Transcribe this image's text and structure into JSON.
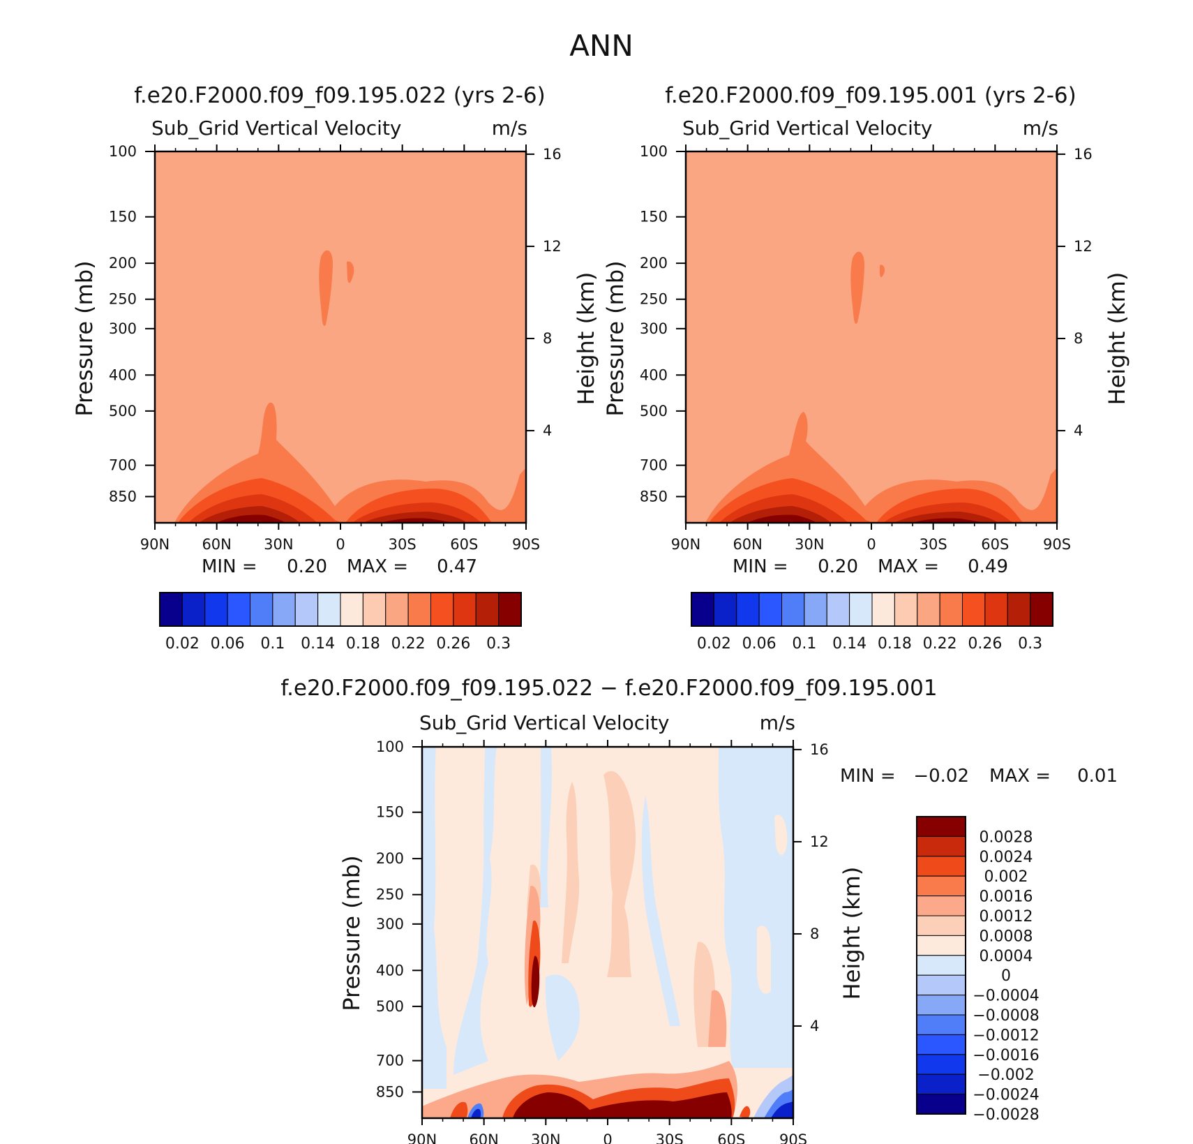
{
  "page": {
    "title": "ANN"
  },
  "colors": {
    "levels14": [
      "#08008c",
      "#0a20c8",
      "#1238ee",
      "#2a57ff",
      "#4f7ef8",
      "#86a8f6",
      "#b4c9fa",
      "#d8e8fb",
      "#fde9dc",
      "#fccbb2",
      "#fba683",
      "#f97a4a",
      "#f5501f",
      "#de3610",
      "#b41f08",
      "#860000"
    ],
    "diff": [
      "#08008c",
      "#0a20c8",
      "#1238ee",
      "#2a57ff",
      "#4f7ef8",
      "#86a8f6",
      "#b4c9fa",
      "#d8e8fb",
      "#fdeadd",
      "#fccfb8",
      "#fba98a",
      "#f97a4a",
      "#ef4b1a",
      "#c82a0b",
      "#860000"
    ]
  },
  "chart_data": [
    {
      "type": "heatmap",
      "case": "f.e20.F2000.f09_f09.195.022 (yrs 2-6)",
      "variable": "Sub_Grid Vertical Velocity",
      "units": "m/s",
      "ylabel": "Pressure (mb)",
      "y2label": "Height (km)",
      "x_ticks": [
        "90N",
        "60N",
        "30N",
        "0",
        "30S",
        "60S",
        "90S"
      ],
      "y_ticks": [
        100,
        150,
        200,
        250,
        300,
        400,
        500,
        700,
        850
      ],
      "y2_ticks": [
        4,
        8,
        12,
        16
      ],
      "ylim": [
        100,
        1000
      ],
      "min_label": "MIN =",
      "min": "0.20",
      "max_label": "MAX =",
      "max": "0.47",
      "colorbar_ticks": [
        "0.02",
        "0.06",
        "0.1",
        "0.14",
        "0.18",
        "0.22",
        "0.26",
        "0.3"
      ]
    },
    {
      "type": "heatmap",
      "case": "f.e20.F2000.f09_f09.195.001 (yrs 2-6)",
      "variable": "Sub_Grid Vertical Velocity",
      "units": "m/s",
      "ylabel": "Pressure (mb)",
      "y2label": "Height (km)",
      "x_ticks": [
        "90N",
        "60N",
        "30N",
        "0",
        "30S",
        "60S",
        "90S"
      ],
      "y_ticks": [
        100,
        150,
        200,
        250,
        300,
        400,
        500,
        700,
        850
      ],
      "y2_ticks": [
        4,
        8,
        12,
        16
      ],
      "ylim": [
        100,
        1000
      ],
      "min_label": "MIN =",
      "min": "0.20",
      "max_label": "MAX =",
      "max": "0.49",
      "colorbar_ticks": [
        "0.02",
        "0.06",
        "0.1",
        "0.14",
        "0.18",
        "0.22",
        "0.26",
        "0.3"
      ]
    },
    {
      "type": "heatmap",
      "case": "f.e20.F2000.f09_f09.195.022 − f.e20.F2000.f09_f09.195.001",
      "variable": "Sub_Grid Vertical Velocity",
      "units": "m/s",
      "ylabel": "Pressure (mb)",
      "y2label": "Height (km)",
      "x_ticks": [
        "90N",
        "60N",
        "30N",
        "0",
        "30S",
        "60S",
        "90S"
      ],
      "y_ticks": [
        100,
        150,
        200,
        250,
        300,
        400,
        500,
        700,
        850
      ],
      "y2_ticks": [
        4,
        8,
        12,
        16
      ],
      "ylim": [
        100,
        1000
      ],
      "min_label": "MIN =",
      "min": "−0.02",
      "max_label": "MAX =",
      "max": "0.01",
      "colorbar_ticks": [
        "0.0028",
        "0.0024",
        "0.002",
        "0.0016",
        "0.0012",
        "0.0008",
        "0.0004",
        "0",
        "−0.0004",
        "−0.0008",
        "−0.0012",
        "−0.0016",
        "−0.002",
        "−0.0024",
        "−0.0028"
      ]
    }
  ]
}
